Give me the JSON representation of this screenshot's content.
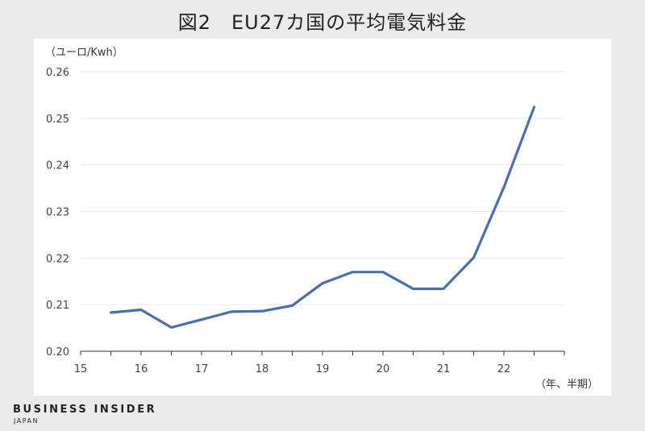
{
  "title": "図2　EU27カ国の平均電気料金",
  "brand": {
    "name": "BUSINESS INSIDER",
    "sub": "JAPAN"
  },
  "colors": {
    "line": "#4a6fb0",
    "grid": "#e6e6e6",
    "background": "#ebebeb",
    "panel": "#ffffff"
  },
  "chart_data": {
    "type": "line",
    "title": "図2　EU27カ国の平均電気料金",
    "ylabel": "（ユーロ/Kwh）",
    "xlabel": "（年、半期）",
    "ylim": [
      0.2,
      0.26
    ],
    "yticks": [
      "0.20",
      "0.21",
      "0.22",
      "0.23",
      "0.24",
      "0.25",
      "0.26"
    ],
    "xticks": [
      "15",
      "16",
      "17",
      "18",
      "19",
      "20",
      "21",
      "22"
    ],
    "grid": true,
    "series": [
      {
        "x": [
          15.5,
          16,
          16.5,
          17,
          17.5,
          18,
          18.5,
          19,
          19.5,
          20,
          20.5,
          21,
          21.5,
          22,
          22.5
        ],
        "values": [
          0.2083,
          0.2089,
          0.2051,
          0.2068,
          0.2085,
          0.2086,
          0.2098,
          0.2146,
          0.217,
          0.217,
          0.2134,
          0.2134,
          0.2201,
          0.2352,
          0.2524
        ]
      }
    ]
  }
}
